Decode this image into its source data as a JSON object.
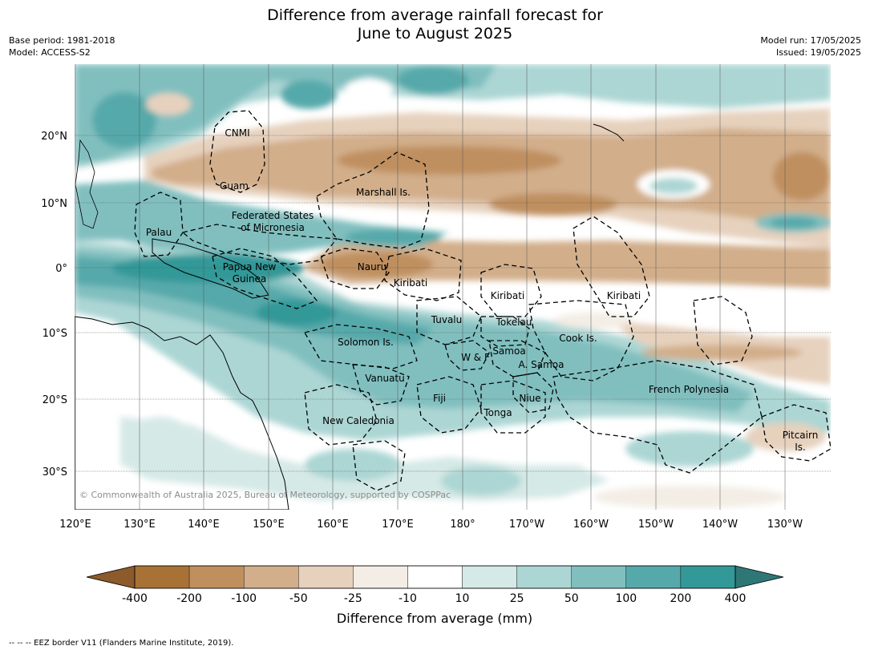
{
  "header": {
    "title_line1": "Difference from average rainfall forecast for",
    "title_line2": "June to August 2025",
    "base_period": "Base period: 1981-2018",
    "model": "Model: ACCESS-S2",
    "model_run": "Model run: 17/05/2025",
    "issued": "Issued: 19/05/2025"
  },
  "map": {
    "lat_labels": [
      "20°N",
      "10°N",
      "0°",
      "10°S",
      "20°S",
      "30°S"
    ],
    "lon_labels": [
      "120°E",
      "130°E",
      "140°E",
      "150°E",
      "160°E",
      "170°E",
      "180°",
      "170°W",
      "160°W",
      "150°W",
      "140°W",
      "130°W"
    ],
    "places": [
      "CNMI",
      "Guam",
      "Marshall Is.",
      "Federated States",
      "of Micronesia",
      "Palau",
      "Papua New",
      "Guinea",
      "Nauru",
      "Kiribati",
      "Kiribati",
      "Kiribati",
      "Tuvalu",
      "Tokelau",
      "Cook Is.",
      "Solomon Is.",
      "W & F",
      "Samoa",
      "A. Samoa",
      "Vanuatu",
      "Fiji",
      "Niue",
      "Tonga",
      "French Polynesia",
      "New Caledonia",
      "Pitcairn",
      "Is."
    ],
    "copyright": "© Commonwealth of Australia 2025, Bureau of Meteorology, supported by COSPPac"
  },
  "colorbar": {
    "ticks": [
      "-400",
      "-200",
      "-100",
      "-50",
      "-25",
      "-10",
      "10",
      "25",
      "50",
      "100",
      "200",
      "400"
    ],
    "colors": [
      "#a87236",
      "#bf8f5e",
      "#d2ae8a",
      "#e6d1bd",
      "#f3ede5",
      "#ffffff",
      "#d5e9e6",
      "#acd6d4",
      "#81bfbf",
      "#56a9aa",
      "#339898"
    ],
    "under_color": "#8c5a2b",
    "over_color": "#2f7777",
    "label": "Difference from average (mm)"
  },
  "footnote": "--  --  -- EEZ border V11 (Flanders Marine Institute, 2019)."
}
